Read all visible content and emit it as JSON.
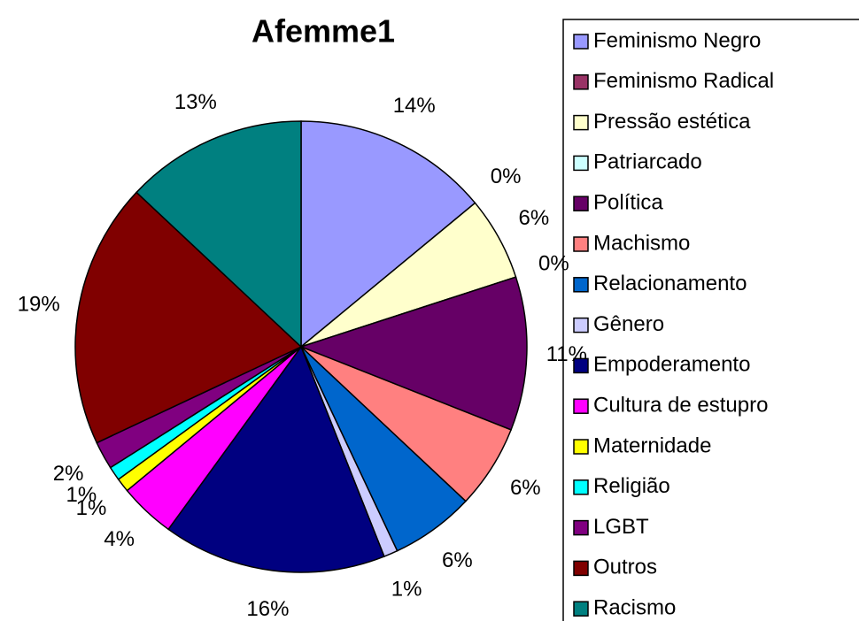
{
  "chart_data": {
    "type": "pie",
    "title": "Afemme1",
    "categories": [
      "Feminismo Negro",
      "Feminismo Radical",
      "Pressão estética",
      "Patriarcado",
      "Política",
      "Machismo",
      "Relacionamento",
      "Gênero",
      "Empoderamento",
      "Cultura de estupro",
      "Maternidade",
      "Religião",
      "LGBT",
      "Outros",
      "Racismo"
    ],
    "values": [
      14,
      0,
      6,
      0,
      11,
      6,
      6,
      1,
      16,
      4,
      1,
      1,
      2,
      19,
      13
    ],
    "value_labels": [
      "14%",
      "0%",
      "6%",
      "0%",
      "11%",
      "6%",
      "6%",
      "1%",
      "16%",
      "4%",
      "1%",
      "1%",
      "2%",
      "19%",
      "13%"
    ],
    "colors": [
      "#9999ff",
      "#993366",
      "#ffffcc",
      "#ccffff",
      "#660066",
      "#ff8080",
      "#0066cc",
      "#ccccff",
      "#000080",
      "#ff00ff",
      "#ffff00",
      "#00ffff",
      "#800080",
      "#800000",
      "#008080"
    ],
    "legend": "right"
  }
}
